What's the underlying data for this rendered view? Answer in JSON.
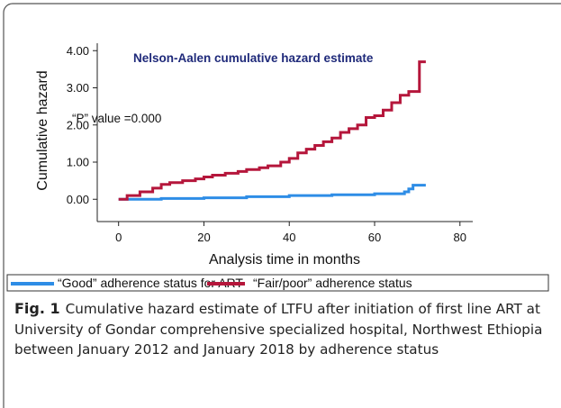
{
  "chart_data": {
    "type": "line",
    "step": "post",
    "annotations": [
      "Nelson-Aalen cumulative hazard estimate",
      "“P” value =0.000"
    ],
    "xlabel": "Analysis time in months",
    "ylabel": "Cumulative hazard",
    "xlim": [
      -5,
      83
    ],
    "ylim": [
      -0.6,
      4.2
    ],
    "xticks": [
      0,
      20,
      40,
      60,
      80
    ],
    "yticks": [
      {
        "value": 0,
        "label": "0.00"
      },
      {
        "value": 1,
        "label": "1.00"
      },
      {
        "value": 2,
        "label": "2.00"
      },
      {
        "value": 3,
        "label": "3.00"
      },
      {
        "value": 4,
        "label": "4.00"
      }
    ],
    "series": [
      {
        "name": "“Good” adherence status for ART",
        "color": "#2e8de6",
        "x": [
          0,
          10,
          20,
          30,
          40,
          50,
          60,
          67,
          68,
          69,
          72
        ],
        "values": [
          0,
          0.02,
          0.04,
          0.07,
          0.1,
          0.12,
          0.15,
          0.2,
          0.28,
          0.38,
          0.38
        ]
      },
      {
        "name": "“Fair/poor” adherence status",
        "color": "#b5163b",
        "x": [
          0,
          2,
          5,
          8,
          10,
          12,
          15,
          18,
          20,
          22,
          25,
          28,
          30,
          33,
          35,
          38,
          40,
          42,
          44,
          46,
          48,
          50,
          52,
          54,
          56,
          58,
          60,
          62,
          64,
          66,
          68,
          70.5,
          72
        ],
        "values": [
          0,
          0.1,
          0.2,
          0.3,
          0.4,
          0.45,
          0.5,
          0.55,
          0.6,
          0.65,
          0.7,
          0.75,
          0.8,
          0.85,
          0.9,
          1.0,
          1.1,
          1.25,
          1.35,
          1.45,
          1.55,
          1.65,
          1.8,
          1.9,
          2.0,
          2.2,
          2.25,
          2.4,
          2.6,
          2.8,
          2.9,
          3.7,
          3.7
        ]
      }
    ],
    "legend": "bottom"
  },
  "caption": {
    "label": "Fig. 1",
    "text": "Cumulative hazard estimate of LTFU after initiation of first line ART at University of Gondar comprehensive specialized hospital, Northwest Ethiopia between January 2012 and January 2018 by adherence status"
  }
}
